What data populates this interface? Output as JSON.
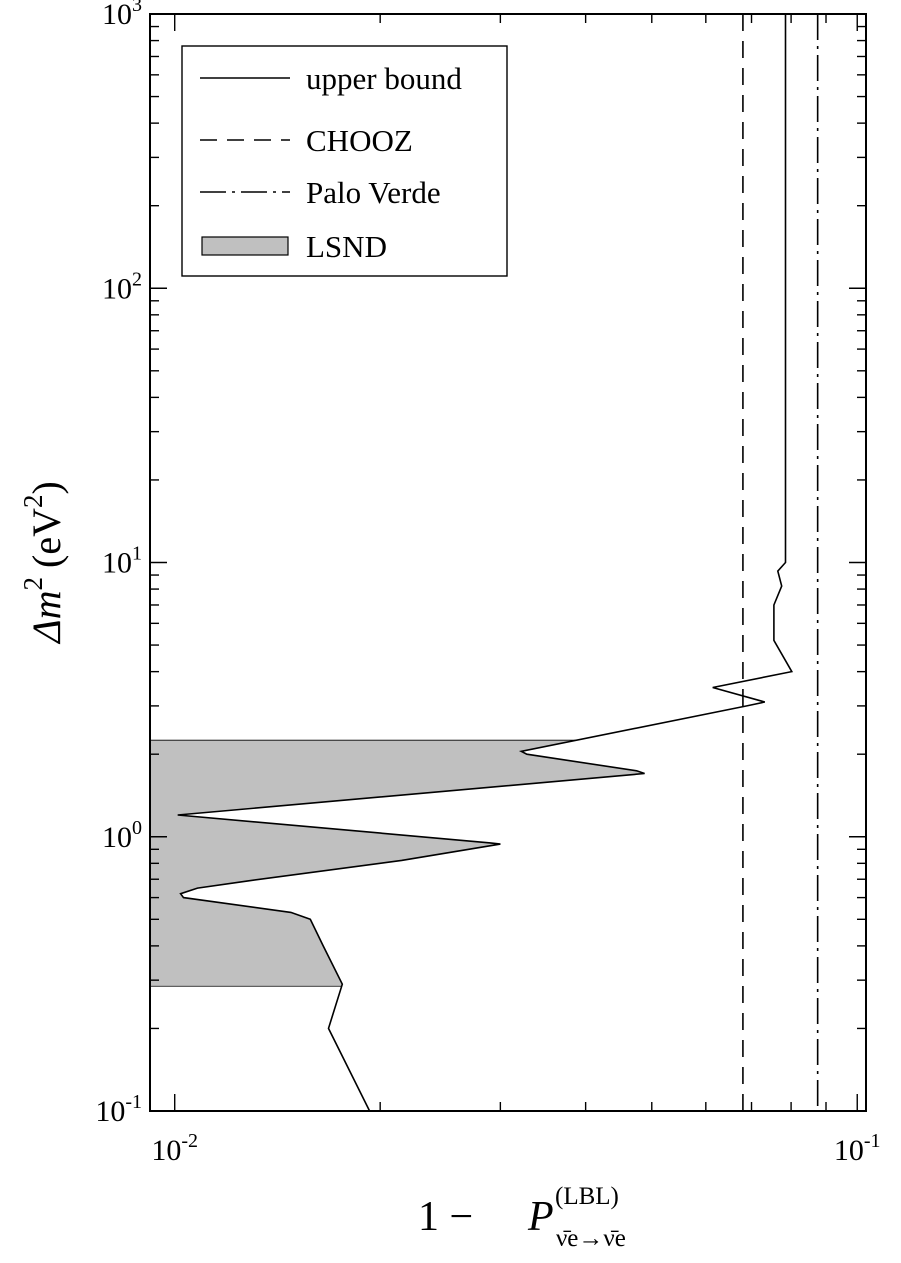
{
  "chart_data": {
    "type": "line",
    "title": "",
    "xlabel": {
      "lead": "1 − ",
      "sym": "P",
      "sup": "(LBL)",
      "sub": "ν̄e→ν̄e"
    },
    "ylabel": {
      "sym": "Δm",
      "exp": "2",
      "unit": "(eV",
      "unit_exp": "2",
      "close": ")"
    },
    "xscale": "log",
    "yscale": "log",
    "xlim": [
      0.0092,
      0.103
    ],
    "ylim": [
      0.1,
      1000
    ],
    "xticks": [
      {
        "value": 0.01,
        "base": "10",
        "exp": "-2"
      },
      {
        "value": 0.1,
        "base": "10",
        "exp": "-1"
      }
    ],
    "yticks": [
      {
        "value": 0.1,
        "base": "10",
        "exp": "-1"
      },
      {
        "value": 1,
        "base": "10",
        "exp": "0"
      },
      {
        "value": 10,
        "base": "10",
        "exp": "1"
      },
      {
        "value": 100,
        "base": "10",
        "exp": "2"
      },
      {
        "value": 1000,
        "base": "10",
        "exp": "3"
      }
    ],
    "grid": false,
    "legend_position": "top-left",
    "series": [
      {
        "name": "upper bound",
        "style": "solid",
        "points": [
          [
            0.0193,
            0.1
          ],
          [
            0.0168,
            0.2
          ],
          [
            0.0176,
            0.29
          ],
          [
            0.0165,
            0.4
          ],
          [
            0.0158,
            0.5
          ],
          [
            0.0148,
            0.53
          ],
          [
            0.0103,
            0.6
          ],
          [
            0.0102,
            0.62
          ],
          [
            0.0108,
            0.65
          ],
          [
            0.0128,
            0.69
          ],
          [
            0.0215,
            0.82
          ],
          [
            0.03,
            0.94
          ],
          [
            0.029,
            0.95
          ],
          [
            0.0101,
            1.2
          ],
          [
            0.0488,
            1.7
          ],
          [
            0.0475,
            1.74
          ],
          [
            0.0328,
            2.0
          ],
          [
            0.0322,
            2.05
          ],
          [
            0.0689,
            3.0
          ],
          [
            0.0732,
            3.1
          ],
          [
            0.0614,
            3.5
          ],
          [
            0.0802,
            4.0
          ],
          [
            0.0755,
            5.2
          ],
          [
            0.0755,
            7.0
          ],
          [
            0.0775,
            8.2
          ],
          [
            0.0765,
            9.3
          ],
          [
            0.0785,
            10.0
          ],
          [
            0.0785,
            1000
          ]
        ]
      },
      {
        "name": "CHOOZ",
        "style": "dashed",
        "x": 0.068
      },
      {
        "name": "Palo Verde",
        "style": "dashdot",
        "x": 0.0875
      },
      {
        "name": "LSND",
        "style": "filled",
        "color": "#c0c0c0",
        "yrange": [
          0.285,
          2.25
        ]
      }
    ]
  }
}
